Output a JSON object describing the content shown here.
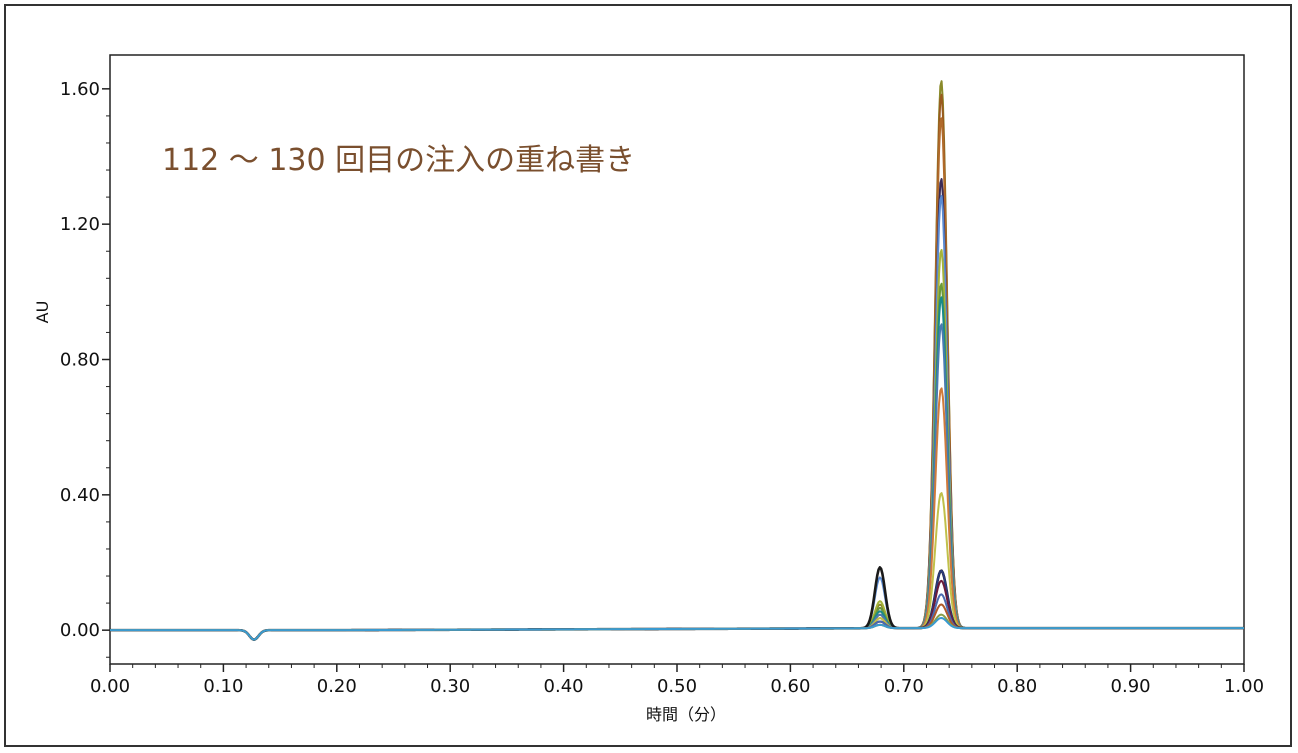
{
  "chart_data": {
    "type": "line",
    "title": "",
    "annotation": "112 ～ 130 回目の注入の重ね書き",
    "annotation_color": "#7a4f2e",
    "xlabel": "時間（分）",
    "ylabel": "AU",
    "xlim": [
      0.0,
      1.0
    ],
    "ylim": [
      -0.1,
      1.7
    ],
    "x_ticks": [
      "0.00",
      "0.10",
      "0.20",
      "0.30",
      "0.40",
      "0.50",
      "0.60",
      "0.70",
      "0.80",
      "0.90",
      "1.00"
    ],
    "y_ticks": [
      "0.00",
      "0.40",
      "0.80",
      "1.20",
      "1.60"
    ],
    "grid": false,
    "legend": "none",
    "baseline_dip": {
      "x": 0.127,
      "y": -0.028
    },
    "peak1_x": 0.679,
    "peak2_x": 0.733,
    "series": [
      {
        "color": "#1a1a1a",
        "peak1": 0.18,
        "peak2": 0.17
      },
      {
        "color": "#8a8a2a",
        "peak1": 0.07,
        "peak2": 1.62
      },
      {
        "color": "#9a5a1e",
        "peak1": 0.05,
        "peak2": 1.58
      },
      {
        "color": "#b06a2a",
        "peak1": 0.04,
        "peak2": 1.51
      },
      {
        "color": "#3a2a55",
        "peak1": 0.06,
        "peak2": 1.33
      },
      {
        "color": "#5a8ad0",
        "peak1": 0.15,
        "peak2": 1.28
      },
      {
        "color": "#a6b43a",
        "peak1": 0.08,
        "peak2": 1.12
      },
      {
        "color": "#6a9a3a",
        "peak1": 0.06,
        "peak2": 1.02
      },
      {
        "color": "#1a8a8a",
        "peak1": 0.05,
        "peak2": 0.98
      },
      {
        "color": "#4a7ab0",
        "peak1": 0.04,
        "peak2": 0.9
      },
      {
        "color": "#d07a3a",
        "peak1": 0.03,
        "peak2": 0.71
      },
      {
        "color": "#c0c04a",
        "peak1": 0.03,
        "peak2": 0.4
      },
      {
        "color": "#2a3a7a",
        "peak1": 0.02,
        "peak2": 0.17
      },
      {
        "color": "#6a1a3a",
        "peak1": 0.02,
        "peak2": 0.14
      },
      {
        "color": "#4a6ab0",
        "peak1": 0.02,
        "peak2": 0.1
      },
      {
        "color": "#b05a2a",
        "peak1": 0.01,
        "peak2": 0.07
      },
      {
        "color": "#8aa04a",
        "peak1": 0.01,
        "peak2": 0.04
      },
      {
        "color": "#3a9ad0",
        "peak1": 0.01,
        "peak2": 0.03
      }
    ]
  }
}
